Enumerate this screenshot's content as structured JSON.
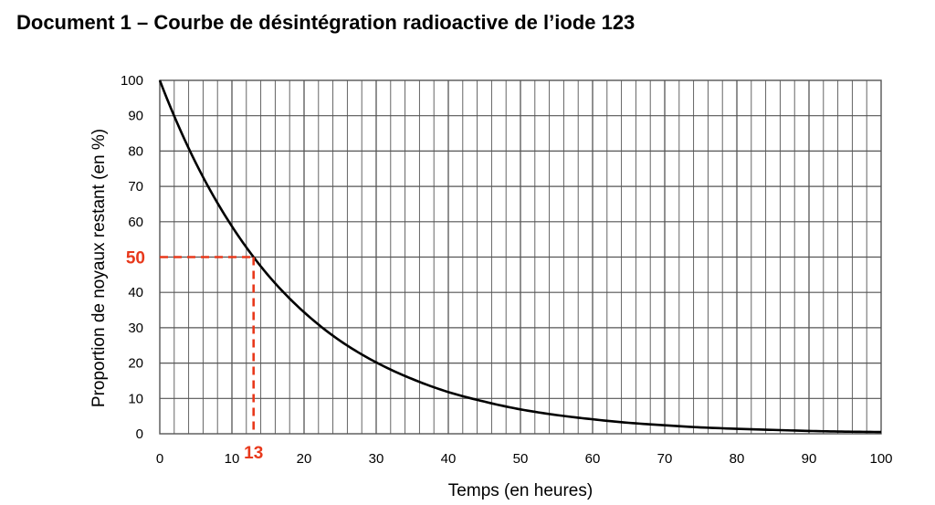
{
  "chart_data": {
    "type": "line",
    "title": "Document 1 – Courbe de désintégration radioactive de l’iode 123",
    "xlabel": "Temps (en heures)",
    "ylabel": "Proportion de noyaux restant (en %)",
    "xlim": [
      0,
      100
    ],
    "ylim": [
      0,
      100
    ],
    "x_ticks": [
      0,
      10,
      20,
      30,
      40,
      50,
      60,
      70,
      80,
      90,
      100
    ],
    "x_tick_labels": [
      "0",
      "10",
      "20",
      "30",
      "40",
      "50",
      "60",
      "70",
      "80",
      "90",
      "100"
    ],
    "y_ticks": [
      0,
      10,
      20,
      30,
      40,
      50,
      60,
      70,
      80,
      90,
      100
    ],
    "y_tick_labels": [
      "0",
      "10",
      "20",
      "30",
      "40",
      "",
      "60",
      "70",
      "80",
      "90",
      "100"
    ],
    "grid": true,
    "x_minor_step": 2,
    "y_minor_step": 10,
    "series": [
      {
        "x": [
          0,
          5,
          10,
          13,
          15,
          20,
          25,
          30,
          35,
          40,
          45,
          50,
          55,
          60,
          65,
          70,
          75,
          80,
          85,
          90,
          95,
          100
        ],
        "values": [
          100,
          76.6,
          58.7,
          50,
          44.9,
          34.4,
          26.3,
          20.2,
          15.5,
          11.8,
          9.1,
          6.9,
          5.3,
          4.1,
          3.1,
          2.4,
          1.8,
          1.4,
          1.1,
          0.8,
          0.6,
          0.5
        ]
      }
    ],
    "annotations": [
      {
        "label": "50",
        "axis": "y",
        "value": 50,
        "color": "#e8391c"
      },
      {
        "label": "13",
        "axis": "x",
        "value": 13,
        "color": "#e8391c"
      }
    ],
    "line_color": "#000000",
    "grid_color": "#555555"
  }
}
